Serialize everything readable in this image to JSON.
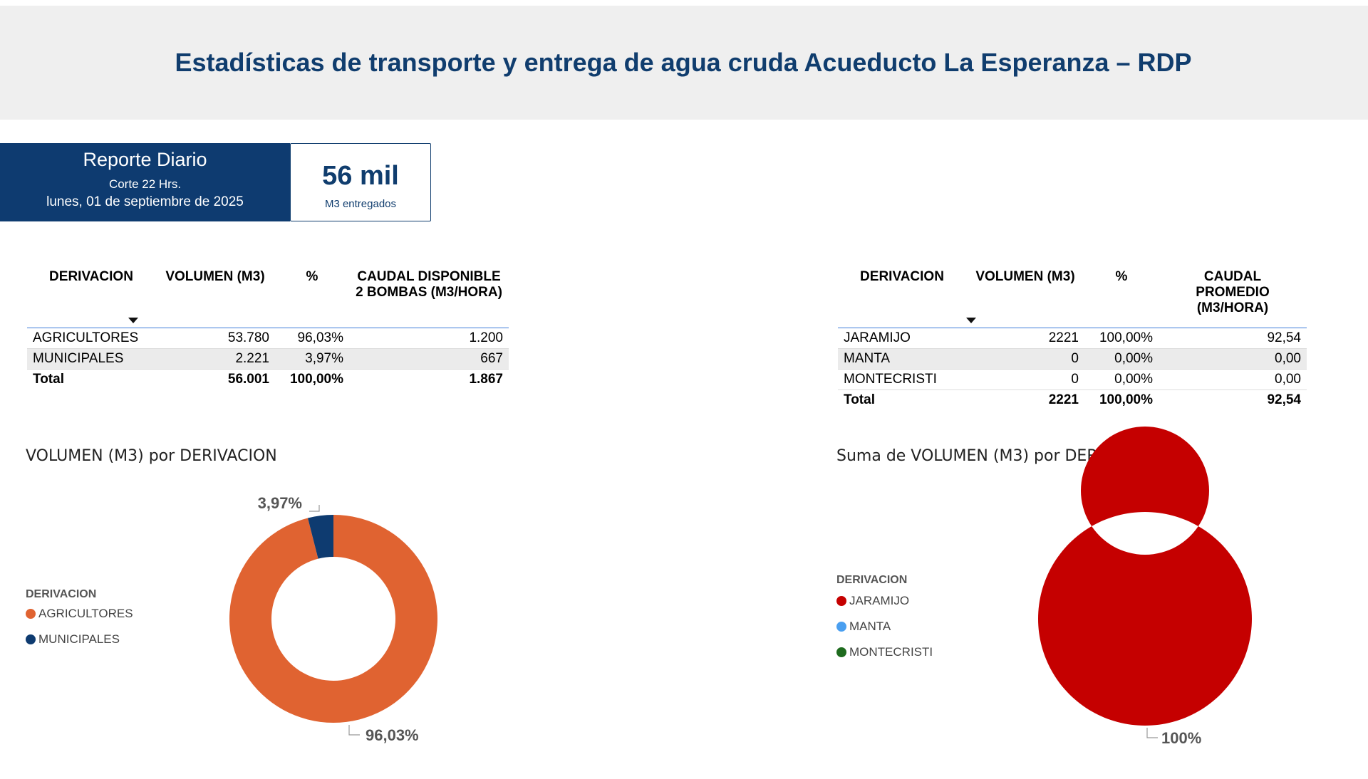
{
  "header": {
    "title": "Estadísticas de transporte y entrega de agua cruda Acueducto La Esperanza – RDP"
  },
  "report": {
    "title": "Reporte Diario",
    "cut": "Corte 22 Hrs.",
    "date": "lunes, 01 de septiembre de 2025"
  },
  "kpi": {
    "value": "56 mil",
    "label": "M3 entregados"
  },
  "table_left": {
    "headers": [
      "DERIVACION",
      "VOLUMEN (M3)",
      "%",
      "CAUDAL DISPONIBLE 2 BOMBAS (M3/HORA)"
    ],
    "rows": [
      [
        "AGRICULTORES",
        "53.780",
        "96,03%",
        "1.200"
      ],
      [
        "MUNICIPALES",
        "2.221",
        "3,97%",
        "667"
      ]
    ],
    "total": [
      "Total",
      "56.001",
      "100,00%",
      "1.867"
    ]
  },
  "table_right": {
    "headers": [
      "DERIVACION",
      "VOLUMEN (M3)",
      "%",
      "CAUDAL PROMEDIO (M3/HORA)"
    ],
    "rows": [
      [
        "JARAMIJO",
        "2221",
        "100,00%",
        "92,54"
      ],
      [
        "MANTA",
        "0",
        "0,00%",
        "0,00"
      ],
      [
        "MONTECRISTI",
        "0",
        "0,00%",
        "0,00"
      ]
    ],
    "total": [
      "Total",
      "2221",
      "100,00%",
      "92,54"
    ]
  },
  "chart_data": [
    {
      "type": "pie",
      "title": "VOLUMEN (M3) por DERIVACION",
      "legend_title": "DERIVACION",
      "legend_position": "left",
      "categories": [
        "AGRICULTORES",
        "MUNICIPALES"
      ],
      "values": [
        53780,
        2221
      ],
      "labels": [
        "96,03%",
        "3,97%"
      ],
      "colors": [
        "#e06331",
        "#0e3b70"
      ],
      "donut": true
    },
    {
      "type": "pie",
      "title": "Suma de VOLUMEN (M3) por DERIVACION",
      "legend_title": "DERIVACION",
      "legend_position": "left",
      "categories": [
        "JARAMIJO",
        "MANTA",
        "MONTECRISTI"
      ],
      "values": [
        2221,
        0,
        0
      ],
      "labels": [
        "100%"
      ],
      "colors": [
        "#c50000",
        "#4a9ff0",
        "#1e6b1e"
      ],
      "donut": true
    }
  ]
}
